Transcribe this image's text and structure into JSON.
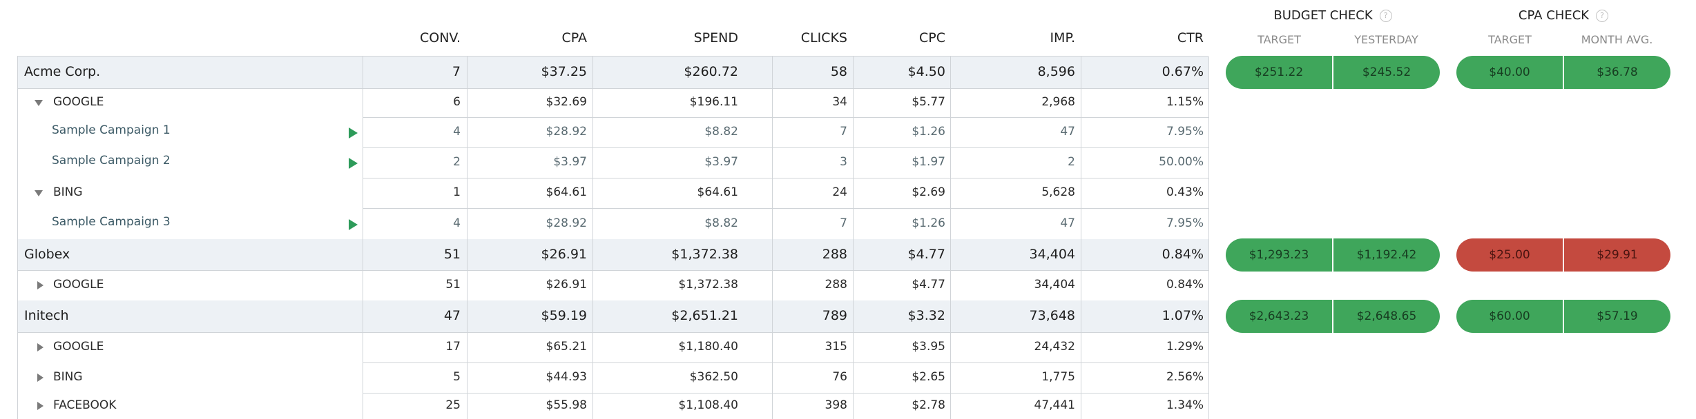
{
  "columns": [
    {
      "key": "conv",
      "label": "CONV."
    },
    {
      "key": "cpa",
      "label": "CPA"
    },
    {
      "key": "spend",
      "label": "SPEND"
    },
    {
      "key": "clicks",
      "label": "CLICKS"
    },
    {
      "key": "cpc",
      "label": "CPC"
    },
    {
      "key": "imp",
      "label": "IMP."
    },
    {
      "key": "ctr",
      "label": "CTR"
    }
  ],
  "budget_check": {
    "title": "BUDGET CHECK",
    "help": "?",
    "sub_labels": [
      "TARGET",
      "YESTERDAY"
    ]
  },
  "cpa_check": {
    "title": "CPA CHECK",
    "help": "?",
    "sub_labels": [
      "TARGET",
      "MONTH AVG."
    ]
  },
  "colors": {
    "ok": "#3fa65b",
    "alert": "#c44a3f",
    "account_row_bg": "#edf1f5",
    "play_icon": "#2d9b5a"
  },
  "rows": [
    {
      "type": "account",
      "name": "Acme Corp.",
      "values": [
        "7",
        "$37.25",
        "$260.72",
        "58",
        "$4.50",
        "8,596",
        "0.67%"
      ],
      "budget": {
        "status": "ok",
        "values": [
          "$251.22",
          "$245.52"
        ]
      },
      "cpa": {
        "status": "ok",
        "values": [
          "$40.00",
          "$36.78"
        ]
      }
    },
    {
      "type": "network",
      "name": "GOOGLE",
      "expanded": true,
      "icon": "caret-down-icon",
      "values": [
        "6",
        "$32.69",
        "$196.11",
        "34",
        "$5.77",
        "2,968",
        "1.15%"
      ]
    },
    {
      "type": "campaign",
      "name": "Sample Campaign 1",
      "icon": "play-icon",
      "values": [
        "4",
        "$28.92",
        "$8.82",
        "7",
        "$1.26",
        "47",
        "7.95%"
      ]
    },
    {
      "type": "campaign",
      "name": "Sample Campaign 2",
      "icon": "play-icon",
      "values": [
        "2",
        "$3.97",
        "$3.97",
        "3",
        "$1.97",
        "2",
        "50.00%"
      ]
    },
    {
      "type": "network",
      "name": "BING",
      "expanded": true,
      "icon": "caret-down-icon",
      "values": [
        "1",
        "$64.61",
        "$64.61",
        "24",
        "$2.69",
        "5,628",
        "0.43%"
      ]
    },
    {
      "type": "campaign",
      "name": "Sample Campaign 3",
      "icon": "play-icon",
      "values": [
        "4",
        "$28.92",
        "$8.82",
        "7",
        "$1.26",
        "47",
        "7.95%"
      ]
    },
    {
      "type": "account",
      "name": "Globex",
      "values": [
        "51",
        "$26.91",
        "$1,372.38",
        "288",
        "$4.77",
        "34,404",
        "0.84%"
      ],
      "budget": {
        "status": "ok",
        "values": [
          "$1,293.23",
          "$1,192.42"
        ]
      },
      "cpa": {
        "status": "alert",
        "values": [
          "$25.00",
          "$29.91"
        ]
      }
    },
    {
      "type": "network",
      "name": "GOOGLE",
      "expanded": false,
      "icon": "caret-right-icon",
      "values": [
        "51",
        "$26.91",
        "$1,372.38",
        "288",
        "$4.77",
        "34,404",
        "0.84%"
      ]
    },
    {
      "type": "account",
      "name": "Initech",
      "values": [
        "47",
        "$59.19",
        "$2,651.21",
        "789",
        "$3.32",
        "73,648",
        "1.07%"
      ],
      "budget": {
        "status": "ok",
        "values": [
          "$2,643.23",
          "$2,648.65"
        ]
      },
      "cpa": {
        "status": "ok",
        "values": [
          "$60.00",
          "$57.19"
        ]
      }
    },
    {
      "type": "network",
      "name": "GOOGLE",
      "expanded": false,
      "icon": "caret-right-icon",
      "values": [
        "17",
        "$65.21",
        "$1,180.40",
        "315",
        "$3.95",
        "24,432",
        "1.29%"
      ]
    },
    {
      "type": "network",
      "name": "BING",
      "expanded": false,
      "icon": "caret-right-icon",
      "values": [
        "5",
        "$44.93",
        "$362.50",
        "76",
        "$2.65",
        "1,775",
        "2.56%"
      ]
    },
    {
      "type": "network",
      "name": "FACEBOOK",
      "expanded": false,
      "icon": "caret-right-icon",
      "values": [
        "25",
        "$55.98",
        "$1,108.40",
        "398",
        "$2.78",
        "47,441",
        "1.34%"
      ]
    }
  ]
}
